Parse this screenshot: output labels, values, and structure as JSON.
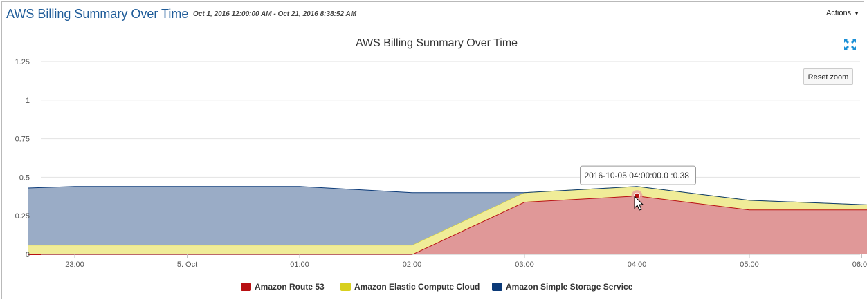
{
  "header": {
    "title": "AWS Billing Summary Over Time",
    "date_range": "Oct 1, 2016 12:00:00 AM - Oct 21, 2016 8:38:52 AM",
    "actions_label": "Actions"
  },
  "toolbar": {
    "reset_zoom_label": "Reset zoom",
    "expand_icon": "fullscreen-expand-icon"
  },
  "tooltip": {
    "text": "2016-10-05 04:00:00.0 :0.38"
  },
  "colors": {
    "route53": "#b81012",
    "ec2": "#d8d01e",
    "s3": "#0b3a78"
  },
  "chart_data": {
    "type": "area",
    "stacked": true,
    "title": "AWS Billing Summary Over Time",
    "xlabel": "",
    "ylabel": "",
    "x": [
      "2016-10-04 22:35",
      "2016-10-04 23:00",
      "2016-10-05 01:00",
      "2016-10-05 02:00",
      "2016-10-05 03:00",
      "2016-10-05 04:00",
      "2016-10-05 05:00",
      "2016-10-05 06:05"
    ],
    "x_ticks": [
      "23:00",
      "5. Oct",
      "01:00",
      "02:00",
      "03:00",
      "04:00",
      "05:00",
      "06:00"
    ],
    "y_ticks": [
      "0",
      "0.25",
      "0.5",
      "0.75",
      "1",
      "1.25"
    ],
    "ylim": [
      0,
      1.25
    ],
    "grid": true,
    "legend_position": "bottom",
    "series": [
      {
        "name": "Amazon Route 53",
        "color": "#b81012",
        "values": [
          0,
          0,
          0,
          0,
          0.34,
          0.38,
          0.29,
          0.29
        ]
      },
      {
        "name": "Amazon Elastic Compute Cloud",
        "color": "#d8d01e",
        "values": [
          0.06,
          0.06,
          0.06,
          0.06,
          0.06,
          0.06,
          0.06,
          0.03
        ]
      },
      {
        "name": "Amazon Simple Storage Service",
        "color": "#0b3a78",
        "values": [
          0.37,
          0.38,
          0.38,
          0.34,
          0,
          0,
          0,
          0
        ]
      }
    ],
    "highlight": {
      "x": "2016-10-05 04:00",
      "series": "Amazon Route 53",
      "value": 0.38
    }
  }
}
